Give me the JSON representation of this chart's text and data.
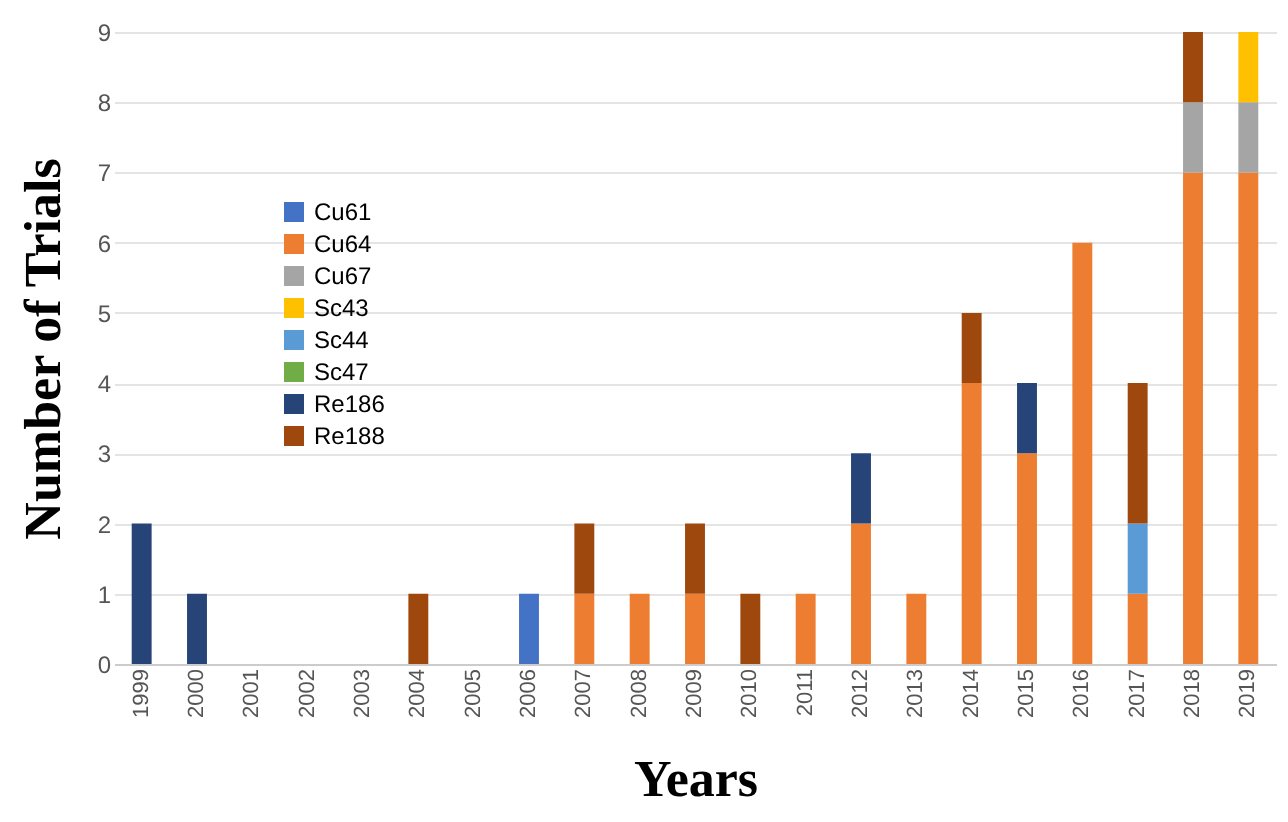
{
  "chart_data": {
    "type": "bar",
    "stacked": true,
    "xlabel": "Years",
    "ylabel": "Number of Trials",
    "categories": [
      "1999",
      "2000",
      "2001",
      "2002",
      "2003",
      "2004",
      "2005",
      "2006",
      "2007",
      "2008",
      "2009",
      "2010",
      "2011",
      "2012",
      "2013",
      "2014",
      "2015",
      "2016",
      "2017",
      "2018",
      "2019"
    ],
    "series": [
      {
        "name": "Cu61",
        "color": "#4472c4",
        "values": [
          0,
          0,
          0,
          0,
          0,
          0,
          0,
          1,
          0,
          0,
          0,
          0,
          0,
          0,
          0,
          0,
          0,
          0,
          0,
          0,
          0
        ]
      },
      {
        "name": "Cu64",
        "color": "#ed7d31",
        "values": [
          0,
          0,
          0,
          0,
          0,
          0,
          0,
          0,
          1,
          1,
          1,
          0,
          1,
          2,
          1,
          4,
          3,
          6,
          1,
          7,
          7
        ]
      },
      {
        "name": "Cu67",
        "color": "#a5a5a5",
        "values": [
          0,
          0,
          0,
          0,
          0,
          0,
          0,
          0,
          0,
          0,
          0,
          0,
          0,
          0,
          0,
          0,
          0,
          0,
          0,
          1,
          1
        ]
      },
      {
        "name": "Sc43",
        "color": "#ffc000",
        "values": [
          0,
          0,
          0,
          0,
          0,
          0,
          0,
          0,
          0,
          0,
          0,
          0,
          0,
          0,
          0,
          0,
          0,
          0,
          0,
          0,
          1
        ]
      },
      {
        "name": "Sc44",
        "color": "#5b9bd5",
        "values": [
          0,
          0,
          0,
          0,
          0,
          0,
          0,
          0,
          0,
          0,
          0,
          0,
          0,
          0,
          0,
          0,
          0,
          0,
          1,
          0,
          0
        ]
      },
      {
        "name": "Sc47",
        "color": "#70ad47",
        "values": [
          0,
          0,
          0,
          0,
          0,
          0,
          0,
          0,
          0,
          0,
          0,
          0,
          0,
          0,
          0,
          0,
          0,
          0,
          0,
          0,
          0
        ]
      },
      {
        "name": "Re186",
        "color": "#264478",
        "values": [
          2,
          1,
          0,
          0,
          0,
          0,
          0,
          0,
          0,
          0,
          0,
          0,
          0,
          1,
          0,
          0,
          1,
          0,
          0,
          0,
          0
        ]
      },
      {
        "name": "Re188",
        "color": "#9e480e",
        "values": [
          0,
          0,
          0,
          0,
          0,
          1,
          0,
          0,
          1,
          0,
          1,
          1,
          0,
          0,
          0,
          1,
          0,
          0,
          2,
          1,
          0
        ]
      }
    ],
    "ylim": [
      0,
      9
    ],
    "yticks": [
      0,
      1,
      2,
      3,
      4,
      5,
      6,
      7,
      8,
      9
    ],
    "grid": "y",
    "legend": "top left"
  }
}
